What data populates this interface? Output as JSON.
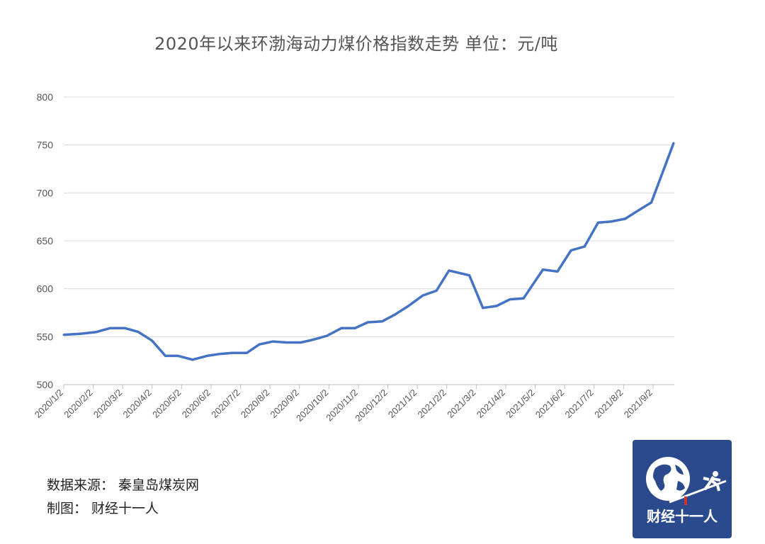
{
  "chart_data": {
    "type": "line",
    "title": "2020年以来环渤海动力煤价格指数走势  单位：元/吨",
    "xlabel": "",
    "ylabel": "",
    "ylim": [
      500,
      800
    ],
    "yticks": [
      500,
      550,
      600,
      650,
      700,
      750,
      800
    ],
    "grid": true,
    "line_color": "#4472c4",
    "xtick_labels": [
      "2020/1/2",
      "2020/2/2",
      "2020/3/2",
      "2020/4/2",
      "2020/5/2",
      "2020/6/2",
      "2020/7/2",
      "2020/8/2",
      "2020/9/2",
      "2020/10/2",
      "2020/11/2",
      "2020/12/2",
      "2021/1/2",
      "2021/2/2",
      "2021/3/2",
      "2021/4/2",
      "2021/5/2",
      "2021/6/2",
      "2021/7/2",
      "2021/8/2",
      "2021/9/2"
    ],
    "series": [
      {
        "x": [
          "2020-01-02",
          "2020-01-19",
          "2020-02-05",
          "2020-02-19",
          "2020-03-05",
          "2020-03-19",
          "2020-04-02",
          "2020-04-16",
          "2020-04-29",
          "2020-05-14",
          "2020-05-29",
          "2020-06-11",
          "2020-06-24",
          "2020-07-09",
          "2020-07-22",
          "2020-08-05",
          "2020-08-19",
          "2020-09-03",
          "2020-09-16",
          "2020-09-30",
          "2020-10-15",
          "2020-10-29",
          "2020-11-11",
          "2020-11-26",
          "2020-12-09",
          "2020-12-23",
          "2021-01-07",
          "2021-01-21",
          "2021-02-03",
          "2021-02-24",
          "2021-03-10",
          "2021-03-24",
          "2021-04-07",
          "2021-04-21",
          "2021-05-11",
          "2021-05-26",
          "2021-06-09",
          "2021-06-23",
          "2021-07-07",
          "2021-07-20",
          "2021-08-04",
          "2021-08-18",
          "2021-08-31",
          "2021-09-23"
        ],
        "values": [
          552,
          553,
          555,
          559,
          559,
          555,
          546,
          530,
          530,
          526,
          530,
          532,
          533,
          533,
          542,
          545,
          544,
          544,
          547,
          551,
          559,
          559,
          565,
          566,
          573,
          582,
          593,
          598,
          619,
          614,
          580,
          582,
          589,
          590,
          620,
          618,
          640,
          644,
          669,
          670,
          673,
          682,
          690,
          752
        ]
      }
    ]
  },
  "footer": {
    "source": "数据来源：  秦皇岛煤炭网",
    "maker": "制图：  财经十一人"
  },
  "logo": {
    "text": "财经十一人",
    "color": "#2b4a8e"
  }
}
